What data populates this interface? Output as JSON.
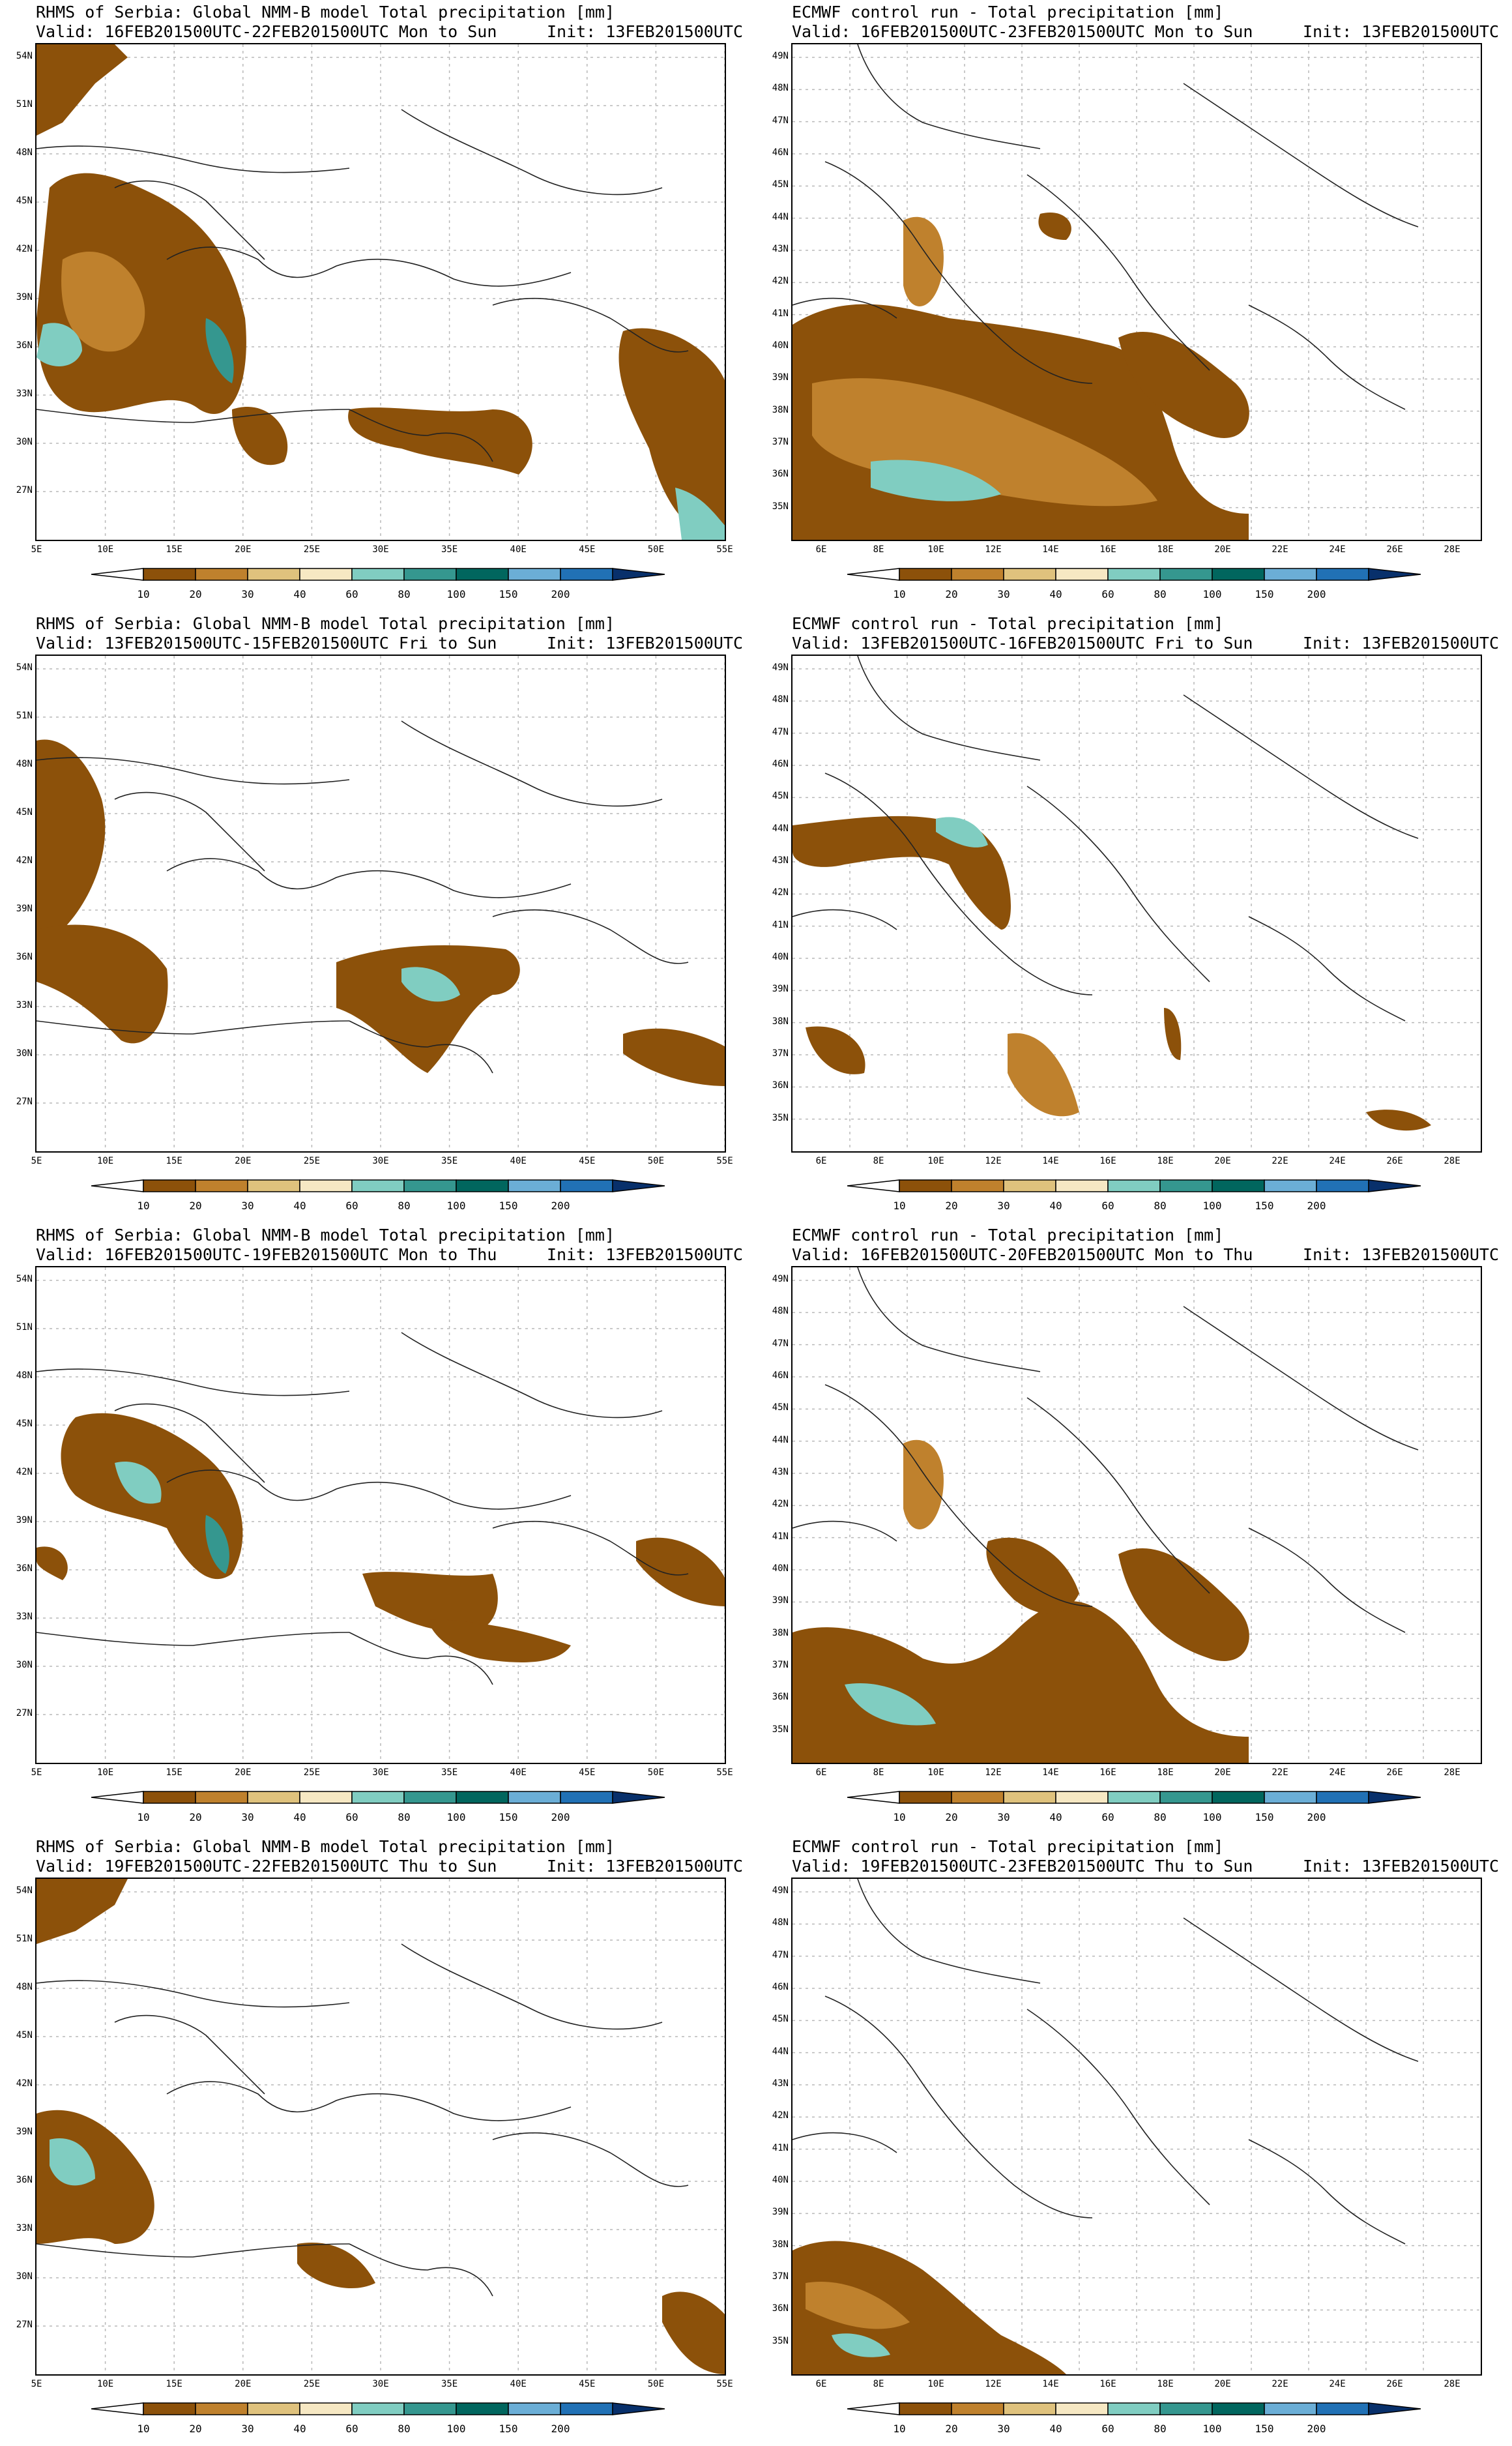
{
  "colorbar": {
    "levels": [
      "10",
      "20",
      "30",
      "40",
      "60",
      "80",
      "100",
      "150",
      "200"
    ],
    "colors": [
      "#ffffff",
      "#8c510a",
      "#bf812d",
      "#dfc27d",
      "#f6e8c3",
      "#80cdc1",
      "#35978f",
      "#01665e",
      "#6baed6",
      "#2171b5",
      "#08306b"
    ]
  },
  "global_x_ticks": [
    "5E",
    "10E",
    "15E",
    "20E",
    "25E",
    "30E",
    "35E",
    "40E",
    "45E",
    "50E",
    "55E"
  ],
  "global_y_ticks": [
    "54N",
    "51N",
    "48N",
    "45N",
    "42N",
    "39N",
    "36N",
    "33N",
    "30N",
    "27N"
  ],
  "ecmwf_x_ticks": [
    "6E",
    "8E",
    "10E",
    "12E",
    "14E",
    "16E",
    "18E",
    "20E",
    "22E",
    "24E",
    "26E",
    "28E"
  ],
  "ecmwf_y_ticks": [
    "49N",
    "48N",
    "47N",
    "46N",
    "45N",
    "44N",
    "43N",
    "42N",
    "41N",
    "40N",
    "39N",
    "38N",
    "37N",
    "36N",
    "35N"
  ],
  "panels": [
    {
      "title": "RHMS of Serbia: Global NMM-B model Total precipitation [mm]",
      "valid": "Valid: 16FEB201500UTC-22FEB201500UTC Mon to Sun",
      "init": "Init: 13FEB201500UTC",
      "kind": "global"
    },
    {
      "title": "ECMWF control run - Total precipitation [mm]",
      "valid": "Valid: 16FEB201500UTC-23FEB201500UTC Mon to Sun",
      "init": "Init: 13FEB201500UTC",
      "kind": "ecmwf"
    },
    {
      "title": "RHMS of Serbia: Global NMM-B model Total precipitation [mm]",
      "valid": "Valid: 13FEB201500UTC-15FEB201500UTC Fri to Sun",
      "init": "Init: 13FEB201500UTC",
      "kind": "global"
    },
    {
      "title": "ECMWF control run - Total precipitation [mm]",
      "valid": "Valid: 13FEB201500UTC-16FEB201500UTC Fri to Sun",
      "init": "Init: 13FEB201500UTC",
      "kind": "ecmwf"
    },
    {
      "title": "RHMS of Serbia: Global NMM-B model Total precipitation [mm]",
      "valid": "Valid: 16FEB201500UTC-19FEB201500UTC Mon to Thu",
      "init": "Init: 13FEB201500UTC",
      "kind": "global"
    },
    {
      "title": "ECMWF control run - Total precipitation [mm]",
      "valid": "Valid: 16FEB201500UTC-20FEB201500UTC Mon to Thu",
      "init": "Init: 13FEB201500UTC",
      "kind": "ecmwf"
    },
    {
      "title": "RHMS of Serbia: Global NMM-B model Total precipitation [mm]",
      "valid": "Valid: 19FEB201500UTC-22FEB201500UTC Thu to Sun",
      "init": "Init: 13FEB201500UTC",
      "kind": "global"
    },
    {
      "title": "ECMWF control run - Total precipitation [mm]",
      "valid": "Valid: 19FEB201500UTC-23FEB201500UTC Thu to Sun",
      "init": "Init: 13FEB201500UTC",
      "kind": "ecmwf"
    }
  ]
}
